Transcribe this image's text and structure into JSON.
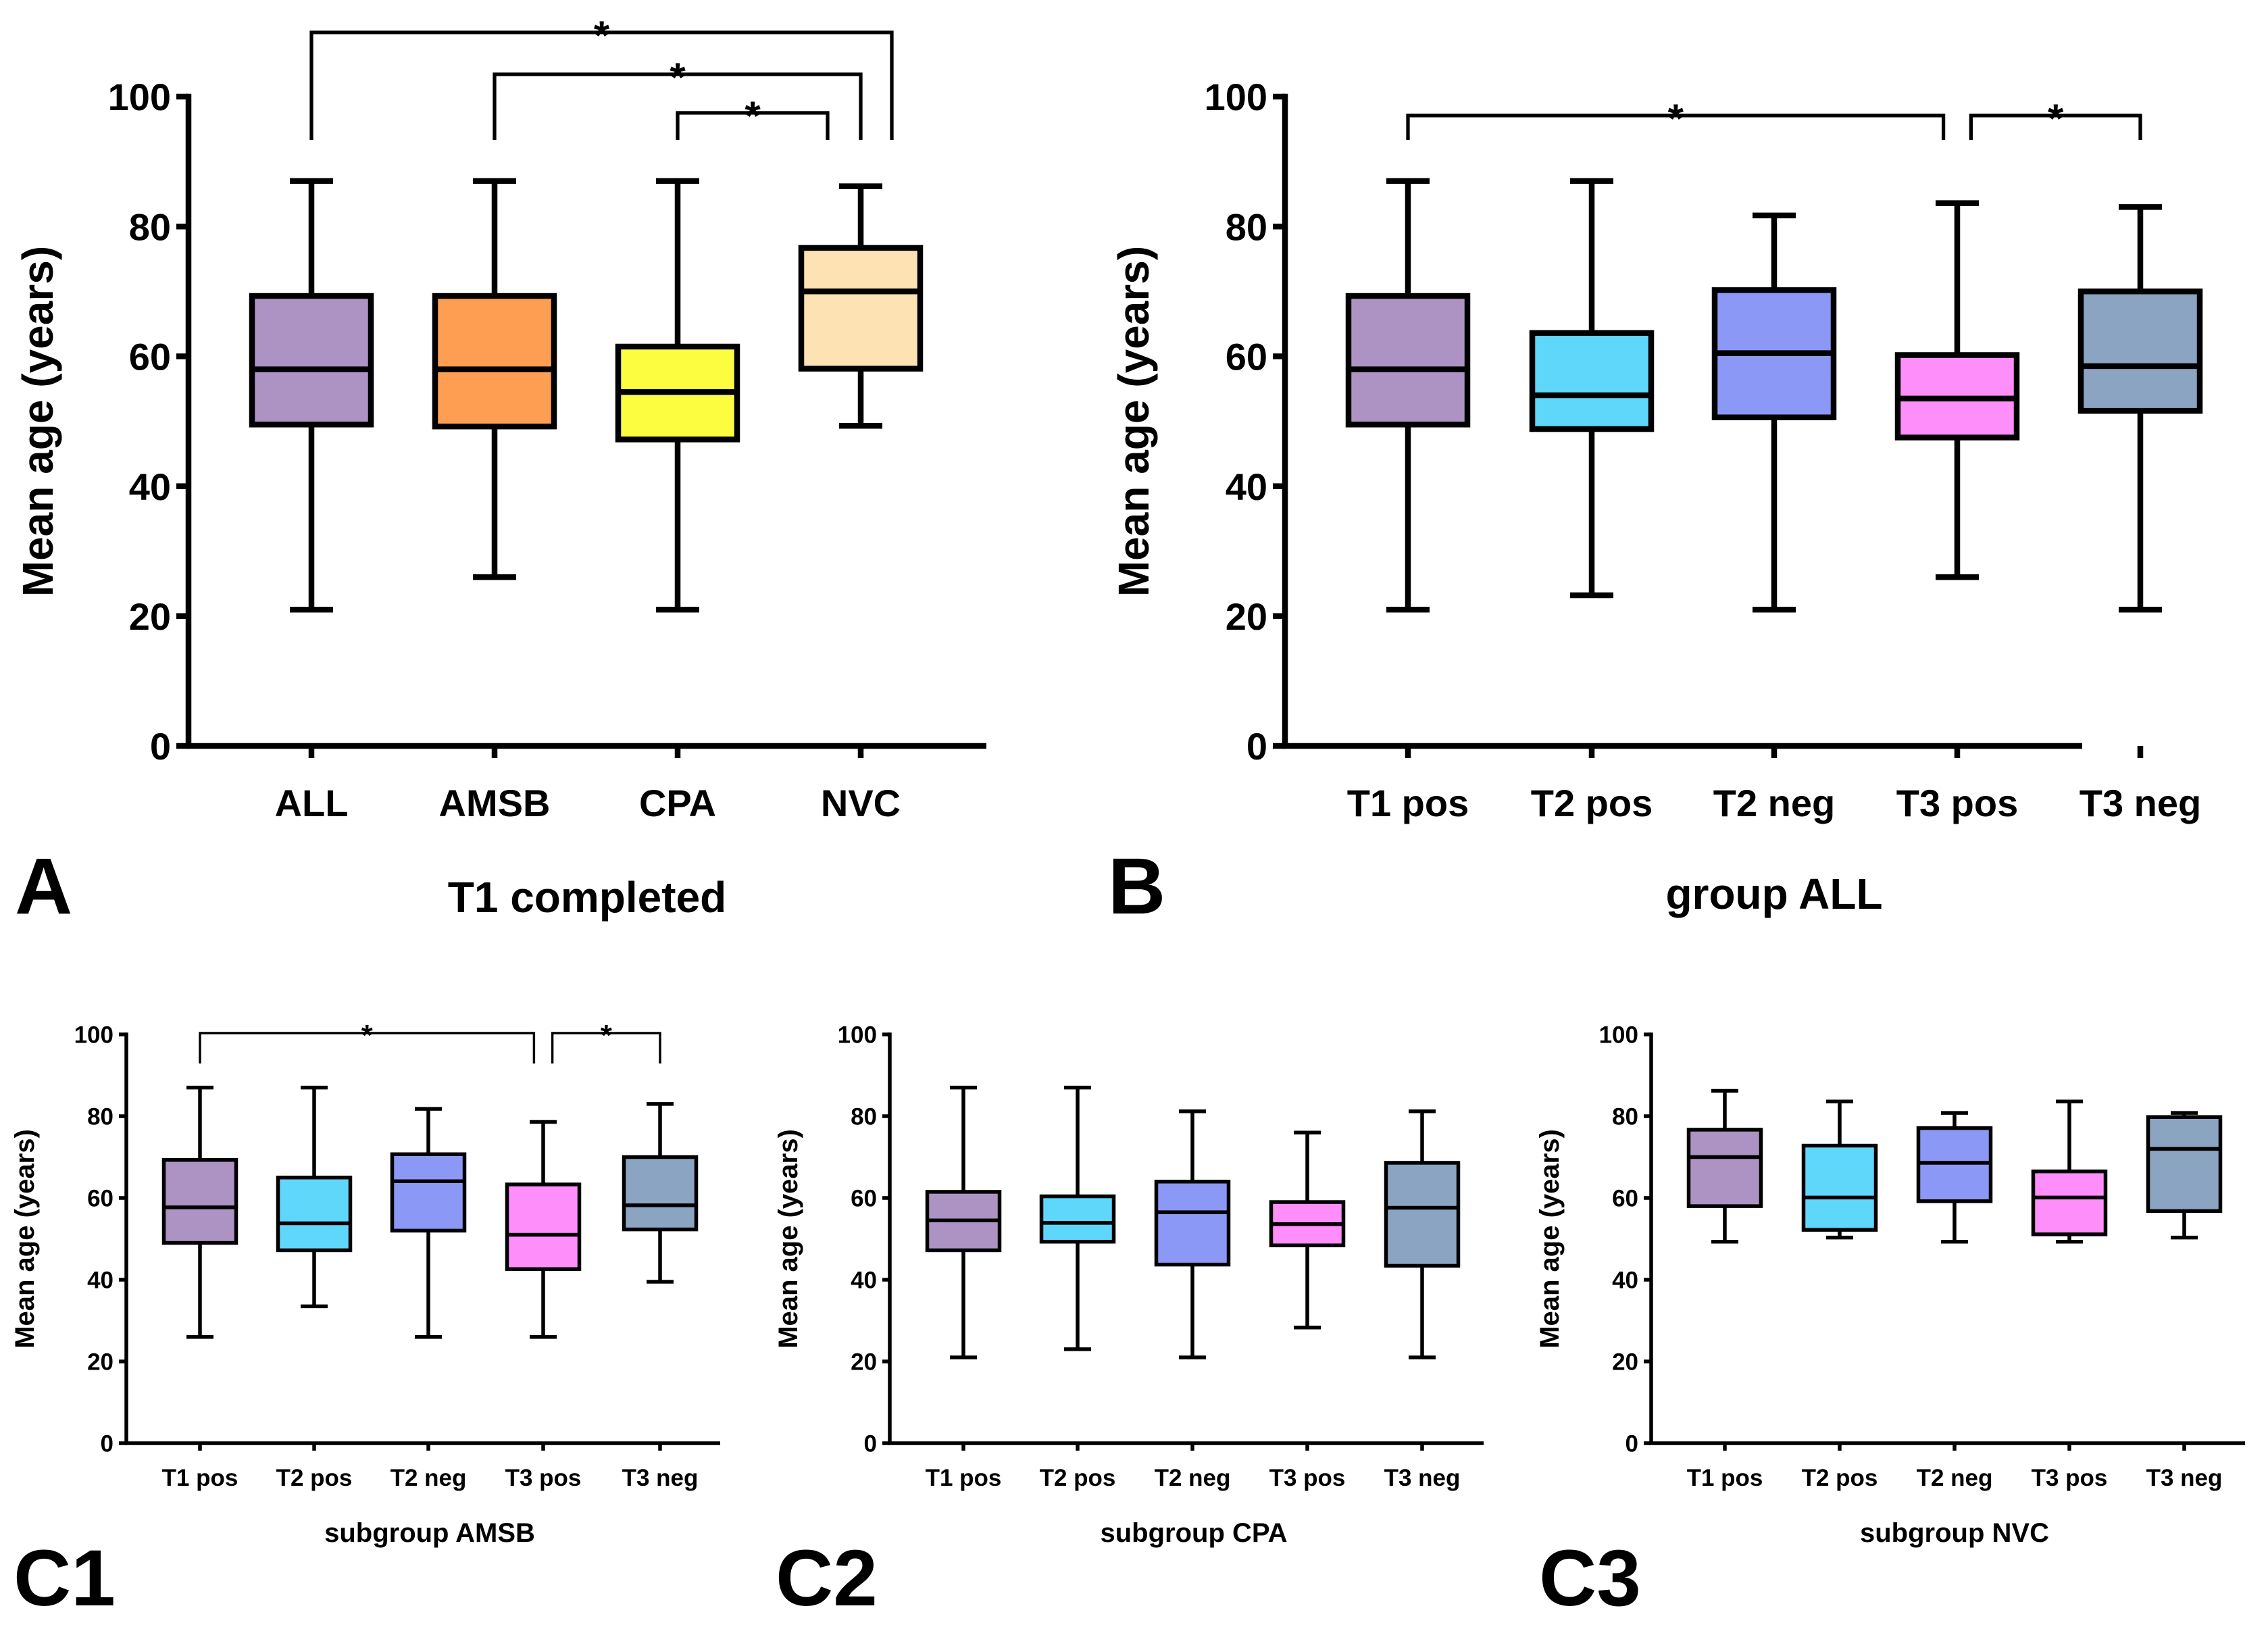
{
  "chart_data": [
    {
      "panel": "A",
      "type": "boxplot",
      "xlabel": "T1 completed",
      "ylabel": "Mean age (years)",
      "ylim": [
        0,
        100
      ],
      "yticks": [
        0,
        20,
        40,
        60,
        80,
        100
      ],
      "categories": [
        "ALL",
        "AMSB",
        "CPA",
        "NVC"
      ],
      "colors": [
        "#ad93c4",
        "#fe9e52",
        "#fcfc40",
        "#fde2b4"
      ],
      "boxes": [
        {
          "min": 21,
          "q1": 49.5,
          "median": 58,
          "q3": 69.3,
          "max": 87
        },
        {
          "min": 26,
          "q1": 49.2,
          "median": 58,
          "q3": 69.3,
          "max": 87
        },
        {
          "min": 21,
          "q1": 47.2,
          "median": 54.5,
          "q3": 61.5,
          "max": 87
        },
        {
          "min": 49.3,
          "q1": 58.1,
          "median": 70,
          "q3": 76.7,
          "max": 86.2
        }
      ],
      "brackets": [
        {
          "from": 0,
          "to": 3,
          "label": "*"
        },
        {
          "from": 1,
          "to": 3,
          "label": "*"
        },
        {
          "from": 2,
          "to": 3,
          "label": "*"
        }
      ]
    },
    {
      "panel": "B",
      "type": "boxplot",
      "xlabel": "group ALL",
      "ylabel": "Mean age (years)",
      "ylim": [
        0,
        100
      ],
      "yticks": [
        0,
        20,
        40,
        60,
        80,
        100
      ],
      "categories": [
        "T1 pos",
        "T2 pos",
        "T2 neg",
        "T3 pos",
        "T3 neg"
      ],
      "colors": [
        "#ad93c4",
        "#5fd7fb",
        "#8b98f6",
        "#fd8efa",
        "#8ba4c2"
      ],
      "boxes": [
        {
          "min": 21,
          "q1": 49.5,
          "median": 58,
          "q3": 69.3,
          "max": 87
        },
        {
          "min": 23.2,
          "q1": 48.8,
          "median": 54,
          "q3": 63.6,
          "max": 87
        },
        {
          "min": 21,
          "q1": 50.6,
          "median": 60.5,
          "q3": 70.2,
          "max": 81.7
        },
        {
          "min": 26,
          "q1": 47.5,
          "median": 53.5,
          "q3": 60.2,
          "max": 83.6
        },
        {
          "min": 21,
          "q1": 51.6,
          "median": 58.5,
          "q3": 70,
          "max": 83
        }
      ],
      "brackets": [
        {
          "from": 0,
          "to": 3,
          "label": "*"
        },
        {
          "from": 3,
          "to": 4,
          "label": "*"
        }
      ]
    },
    {
      "panel": "C1",
      "type": "boxplot",
      "xlabel": "subgroup AMSB",
      "ylabel": "Mean age (years)",
      "ylim": [
        0,
        100
      ],
      "yticks": [
        0,
        20,
        40,
        60,
        80,
        100
      ],
      "categories": [
        "T1 pos",
        "T2 pos",
        "T2 neg",
        "T3 pos",
        "T3 neg"
      ],
      "colors": [
        "#ad93c4",
        "#5fd7fb",
        "#8b98f6",
        "#fd8efa",
        "#8ba4c2"
      ],
      "boxes": [
        {
          "min": 26,
          "q1": 49,
          "median": 57.7,
          "q3": 69.3,
          "max": 87
        },
        {
          "min": 33.5,
          "q1": 47.2,
          "median": 53.8,
          "q3": 65,
          "max": 87
        },
        {
          "min": 26,
          "q1": 52,
          "median": 64.1,
          "q3": 70.7,
          "max": 81.8
        },
        {
          "min": 26,
          "q1": 42.6,
          "median": 51,
          "q3": 63.3,
          "max": 78.6
        },
        {
          "min": 39.5,
          "q1": 52.3,
          "median": 58.2,
          "q3": 70,
          "max": 83
        }
      ],
      "brackets": [
        {
          "from": 0,
          "to": 3,
          "label": "*"
        },
        {
          "from": 3,
          "to": 4,
          "label": "*"
        }
      ]
    },
    {
      "panel": "C2",
      "type": "boxplot",
      "xlabel": "subgroup CPA",
      "ylabel": "Mean age (years)",
      "ylim": [
        0,
        100
      ],
      "yticks": [
        0,
        20,
        40,
        60,
        80,
        100
      ],
      "categories": [
        "T1 pos",
        "T2 pos",
        "T2 neg",
        "T3 pos",
        "T3 neg"
      ],
      "colors": [
        "#ad93c4",
        "#5fd7fb",
        "#8b98f6",
        "#fd8efa",
        "#8ba4c2"
      ],
      "boxes": [
        {
          "min": 21,
          "q1": 47.2,
          "median": 54.5,
          "q3": 61.5,
          "max": 87
        },
        {
          "min": 23,
          "q1": 49.3,
          "median": 53.9,
          "q3": 60.4,
          "max": 87
        },
        {
          "min": 21,
          "q1": 43.7,
          "median": 56.5,
          "q3": 64,
          "max": 81.2
        },
        {
          "min": 28.3,
          "q1": 48.4,
          "median": 53.6,
          "q3": 59,
          "max": 76
        },
        {
          "min": 21,
          "q1": 43.4,
          "median": 57.6,
          "q3": 68.6,
          "max": 81.2
        }
      ],
      "brackets": []
    },
    {
      "panel": "C3",
      "type": "boxplot",
      "xlabel": "subgroup NVC",
      "ylabel": "Mean age (years)",
      "ylim": [
        0,
        100
      ],
      "yticks": [
        0,
        20,
        40,
        60,
        80,
        100
      ],
      "categories": [
        "T1 pos",
        "T2 pos",
        "T2 neg",
        "T3 pos",
        "T3 neg"
      ],
      "colors": [
        "#ad93c4",
        "#5fd7fb",
        "#8b98f6",
        "#fd8efa",
        "#8ba4c2"
      ],
      "boxes": [
        {
          "min": 49.3,
          "q1": 58,
          "median": 70,
          "q3": 76.7,
          "max": 86.2
        },
        {
          "min": 50.3,
          "q1": 52.2,
          "median": 60.1,
          "q3": 72.8,
          "max": 83.6
        },
        {
          "min": 49.3,
          "q1": 59.2,
          "median": 68.6,
          "q3": 77.1,
          "max": 80.8
        },
        {
          "min": 49.3,
          "q1": 51.1,
          "median": 60.1,
          "q3": 66.5,
          "max": 83.6
        },
        {
          "min": 50.3,
          "q1": 56.8,
          "median": 72,
          "q3": 79.8,
          "max": 80.8
        }
      ],
      "brackets": []
    }
  ]
}
